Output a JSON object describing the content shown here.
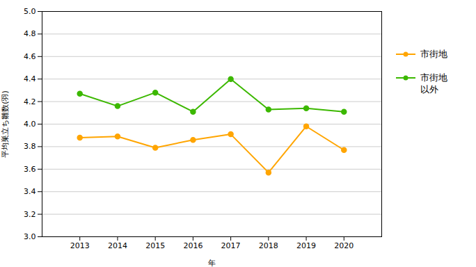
{
  "chart_data": {
    "type": "line",
    "xlabel": "年",
    "ylabel": "平均巣立ち雛数(羽)",
    "x": [
      2013,
      2014,
      2015,
      2016,
      2017,
      2018,
      2019,
      2020
    ],
    "series": [
      {
        "name": "市街地",
        "color": "#FFA500",
        "marker": "circle",
        "values": [
          3.88,
          3.89,
          3.79,
          3.86,
          3.91,
          3.57,
          3.98,
          3.77
        ]
      },
      {
        "name": "市街地\n以外",
        "color": "#3CB800",
        "marker": "circle",
        "values": [
          4.27,
          4.16,
          4.28,
          4.11,
          4.4,
          4.13,
          4.14,
          4.11
        ]
      }
    ],
    "xlim": [
      2012,
      2021
    ],
    "xticks": [
      2013,
      2014,
      2015,
      2016,
      2017,
      2018,
      2019,
      2020
    ],
    "ylim": [
      3.0,
      5.0
    ],
    "yticks": [
      {
        "value": 3.0,
        "label": "3.0"
      },
      {
        "value": 3.2,
        "label": "3.2"
      },
      {
        "value": 3.4,
        "label": "3.4"
      },
      {
        "value": 3.6,
        "label": "3.6"
      },
      {
        "value": 3.8,
        "label": "3.8"
      },
      {
        "value": 4.0,
        "label": "4.0"
      },
      {
        "value": 4.2,
        "label": "4.2"
      },
      {
        "value": 4.4,
        "label": "4.4"
      },
      {
        "value": 4.6,
        "label": "4.6"
      },
      {
        "value": 4.8,
        "label": "4.8"
      },
      {
        "value": 5.0,
        "label": "5.0"
      }
    ],
    "grid": "y",
    "legend": "right"
  }
}
